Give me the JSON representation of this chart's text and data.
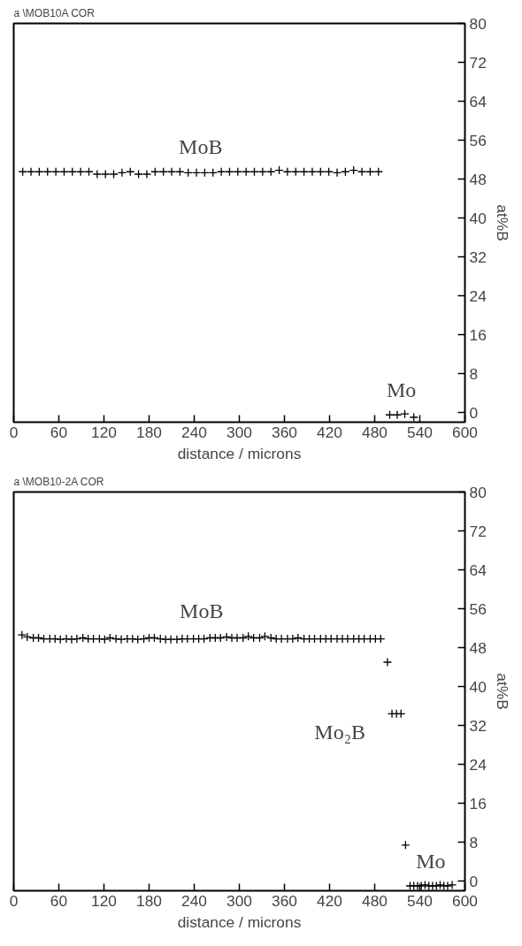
{
  "chart_data": [
    {
      "type": "scatter",
      "title": "a \\MOB10A COR",
      "xlabel": "distance / microns",
      "ylabel": "at%B",
      "marker": "cross",
      "xlim": [
        0,
        600
      ],
      "ylim": [
        -2,
        80
      ],
      "xticks": [
        0,
        60,
        120,
        180,
        240,
        300,
        360,
        420,
        480,
        540,
        600
      ],
      "yticks": [
        0,
        8,
        16,
        24,
        32,
        40,
        48,
        56,
        64,
        72,
        80
      ],
      "series": [
        {
          "name": "MoB",
          "color": "#000000",
          "x": [
            12,
            23,
            34,
            45,
            56,
            67,
            78,
            89,
            100,
            111,
            122,
            133,
            144,
            155,
            166,
            177,
            188,
            199,
            210,
            221,
            232,
            243,
            254,
            265,
            276,
            287,
            298,
            309,
            320,
            331,
            342,
            353,
            364,
            375,
            386,
            397,
            408,
            419,
            430,
            441,
            452,
            463,
            474,
            485
          ],
          "values": [
            49.5,
            49.5,
            49.5,
            49.5,
            49.5,
            49.5,
            49.5,
            49.5,
            49.5,
            49,
            49,
            49,
            49.3,
            49.5,
            49,
            49,
            49.5,
            49.5,
            49.5,
            49.5,
            49.3,
            49.3,
            49.3,
            49.3,
            49.5,
            49.5,
            49.5,
            49.5,
            49.5,
            49.5,
            49.5,
            49.8,
            49.5,
            49.5,
            49.5,
            49.5,
            49.5,
            49.5,
            49.3,
            49.5,
            49.8,
            49.5,
            49.5,
            49.5
          ]
        },
        {
          "name": "Mo",
          "color": "#000000",
          "x": [
            500,
            510,
            520,
            532
          ],
          "values": [
            -0.5,
            -0.5,
            -0.3,
            -1
          ]
        }
      ]
    },
    {
      "type": "scatter",
      "title": "a \\MOB10-2A COR",
      "xlabel": "distance / microns",
      "ylabel": "at%B",
      "marker": "cross",
      "xlim": [
        0,
        600
      ],
      "ylim": [
        -2,
        80
      ],
      "xticks": [
        0,
        60,
        120,
        180,
        240,
        300,
        360,
        420,
        480,
        540,
        600
      ],
      "yticks": [
        0,
        8,
        16,
        24,
        32,
        40,
        48,
        56,
        64,
        72,
        80
      ],
      "series": [
        {
          "name": "MoB",
          "color": "#000000",
          "x": [
            11,
            18,
            26,
            33,
            40,
            48,
            55,
            62,
            70,
            77,
            84,
            92,
            99,
            106,
            114,
            121,
            128,
            136,
            143,
            151,
            158,
            165,
            173,
            180,
            187,
            195,
            202,
            209,
            217,
            224,
            231,
            239,
            246,
            253,
            261,
            268,
            275,
            283,
            290,
            297,
            305,
            312,
            319,
            327,
            334,
            342,
            349,
            356,
            364,
            371,
            378,
            386,
            393,
            400,
            408,
            415,
            422,
            430,
            437,
            444,
            452,
            459,
            466,
            474,
            481,
            488
          ],
          "values": [
            50.6,
            50.2,
            50,
            50,
            49.8,
            49.8,
            49.8,
            49.7,
            49.8,
            49.7,
            49.8,
            50,
            49.8,
            49.8,
            49.8,
            49.7,
            50,
            49.8,
            49.7,
            49.8,
            49.8,
            49.7,
            49.8,
            50,
            50,
            49.8,
            49.7,
            49.7,
            49.7,
            49.8,
            49.8,
            49.8,
            49.8,
            49.8,
            50,
            50,
            50,
            50.2,
            50,
            50,
            50,
            50.3,
            50,
            50,
            50.3,
            50,
            49.8,
            49.8,
            49.8,
            49.8,
            50,
            49.8,
            49.8,
            49.8,
            49.8,
            49.8,
            49.8,
            49.8,
            49.8,
            49.8,
            49.8,
            49.8,
            49.8,
            49.8,
            49.8,
            49.8
          ]
        },
        {
          "color": "#000000",
          "x": [
            497,
            521
          ],
          "values": [
            45,
            7.4
          ]
        },
        {
          "name": "Mo₂B",
          "color": "#000000",
          "x": [
            503,
            509,
            515
          ],
          "values": [
            34.4,
            34.4,
            34.4
          ]
        },
        {
          "name": "Mo",
          "color": "#000000",
          "x": [
            527,
            532,
            537,
            542,
            547,
            552,
            557,
            562,
            567,
            572,
            577,
            583
          ],
          "values": [
            -1,
            -1,
            -1,
            -1,
            -0.8,
            -1,
            -1,
            -1,
            -0.8,
            -1,
            -1,
            -0.8
          ]
        }
      ]
    }
  ]
}
